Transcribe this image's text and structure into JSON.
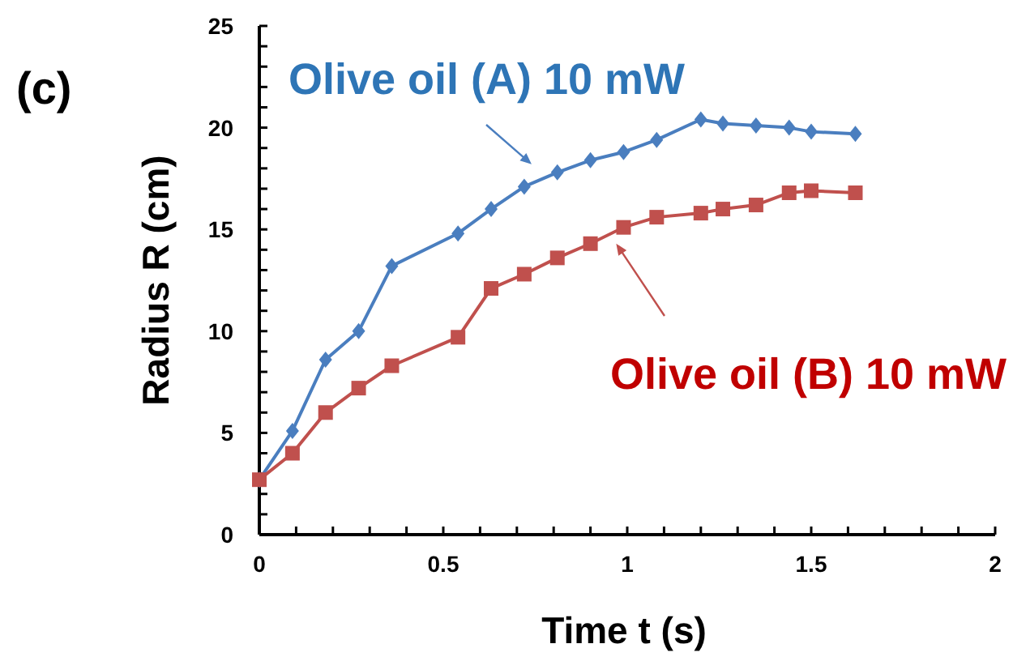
{
  "chart_data": {
    "type": "line",
    "xlabel": "Time t (s)",
    "ylabel": "Radius R (cm)",
    "annotations": [
      "(c)"
    ],
    "xlim": [
      0,
      2
    ],
    "ylim": [
      0,
      25
    ],
    "xticks": [
      0,
      {
        "value": 0.1,
        "label": null
      },
      {
        "value": 0.2,
        "label": null
      },
      {
        "value": 0.3,
        "label": null
      },
      {
        "value": 0.4,
        "label": null
      },
      {
        "value": 0.5,
        "label": "0.5"
      },
      {
        "value": 0.6,
        "label": null
      },
      {
        "value": 0.7,
        "label": null
      },
      {
        "value": 0.8,
        "label": null
      },
      {
        "value": 0.9,
        "label": null
      },
      1,
      {
        "value": 1.1,
        "label": null
      },
      {
        "value": 1.2,
        "label": null
      },
      {
        "value": 1.3,
        "label": null
      },
      {
        "value": 1.4,
        "label": null
      },
      {
        "value": 1.5,
        "label": "1.5"
      },
      {
        "value": 1.6,
        "label": null
      },
      {
        "value": 1.7,
        "label": null
      },
      {
        "value": 1.8,
        "label": null
      },
      {
        "value": 1.9,
        "label": null
      },
      2
    ],
    "yticks": [
      0,
      {
        "value": 1,
        "label": null
      },
      {
        "value": 2,
        "label": null
      },
      {
        "value": 3,
        "label": null
      },
      {
        "value": 4,
        "label": null
      },
      5,
      {
        "value": 6,
        "label": null
      },
      {
        "value": 7,
        "label": null
      },
      {
        "value": 8,
        "label": null
      },
      {
        "value": 9,
        "label": null
      },
      10,
      {
        "value": 11,
        "label": null
      },
      {
        "value": 12,
        "label": null
      },
      {
        "value": 13,
        "label": null
      },
      {
        "value": 14,
        "label": null
      },
      15,
      {
        "value": 16,
        "label": null
      },
      {
        "value": 17,
        "label": null
      },
      {
        "value": 18,
        "label": null
      },
      {
        "value": 19,
        "label": null
      },
      20,
      {
        "value": 21,
        "label": null
      },
      {
        "value": 22,
        "label": null
      },
      {
        "value": 23,
        "label": null
      },
      {
        "value": 24,
        "label": null
      },
      25
    ],
    "grid": false,
    "line_style": "solid",
    "series": [
      {
        "name": "Olive oil (A) 10 mW",
        "color": "#4a7ebf",
        "marker": "diamond",
        "x": [
          0,
          0.09,
          0.18,
          0.27,
          0.36,
          0.54,
          0.63,
          0.72,
          0.81,
          0.9,
          0.99,
          1.08,
          1.2,
          1.26,
          1.35,
          1.44,
          1.5,
          1.62
        ],
        "values": [
          2.7,
          5.1,
          8.6,
          10.0,
          13.2,
          14.8,
          16.0,
          17.1,
          17.8,
          18.4,
          18.8,
          19.4,
          20.4,
          20.2,
          20.1,
          20.0,
          19.8,
          19.7
        ]
      },
      {
        "name": "Olive oil (B) 10 mW",
        "color": "#c0504d",
        "marker": "square",
        "x": [
          0,
          0.09,
          0.18,
          0.27,
          0.36,
          0.54,
          0.63,
          0.72,
          0.81,
          0.9,
          0.99,
          1.08,
          1.2,
          1.26,
          1.35,
          1.44,
          1.5,
          1.62
        ],
        "values": [
          2.7,
          4.0,
          6.0,
          7.2,
          8.3,
          9.7,
          12.1,
          12.8,
          13.6,
          14.3,
          15.1,
          15.6,
          15.8,
          16.0,
          16.2,
          16.8,
          16.9,
          16.8
        ]
      }
    ]
  }
}
